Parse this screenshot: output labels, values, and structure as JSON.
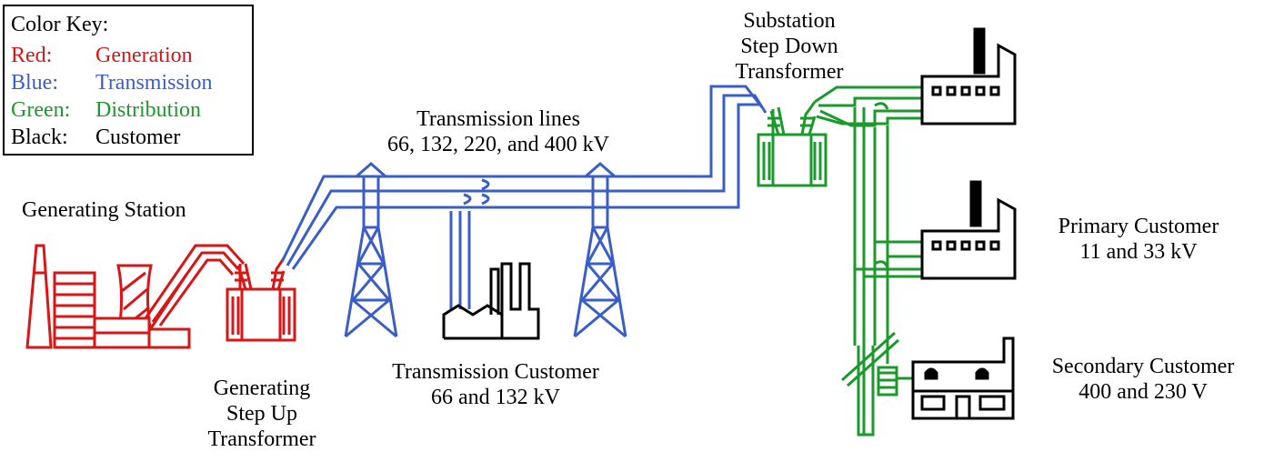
{
  "colors": {
    "generation": "#d91515",
    "transmission": "#3a5ec8",
    "distribution": "#1a9a2a",
    "customer": "#000000"
  },
  "legend": {
    "title": "Color Key:",
    "rows": [
      {
        "key": "Red:",
        "value": "Generation"
      },
      {
        "key": "Blue:",
        "value": "Transmission"
      },
      {
        "key": "Green:",
        "value": "Distribution"
      },
      {
        "key": "Black:",
        "value": "Customer"
      }
    ]
  },
  "labels": {
    "generating_station": "Generating Station",
    "step_up": [
      "Generating",
      "Step Up",
      "Transformer"
    ],
    "transmission_lines": [
      "Transmission lines",
      "66, 132, 220, and 400 kV"
    ],
    "transmission_customer": [
      "Transmission Customer",
      "66 and 132 kV"
    ],
    "substation": [
      "Substation",
      "Step Down",
      "Transformer"
    ],
    "primary_customer": [
      "Primary Customer",
      "11 and 33 kV"
    ],
    "secondary_customer": [
      "Secondary Customer",
      "400 and 230 V"
    ]
  },
  "icons": [
    "power-plant-icon",
    "transformer-icon",
    "pylon-icon",
    "factory-icon",
    "house-icon",
    "utility-pole-icon"
  ]
}
